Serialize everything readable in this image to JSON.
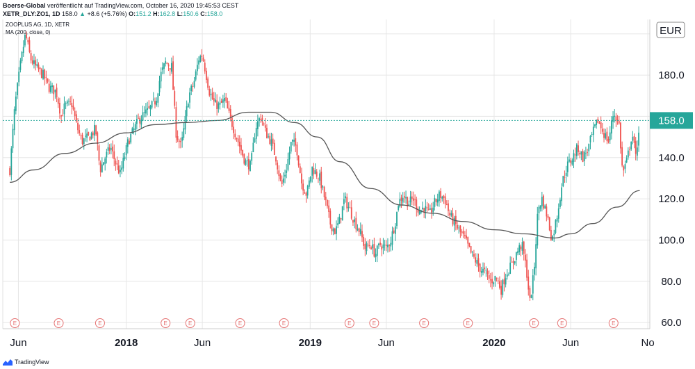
{
  "header": {
    "publisher": "Boerse-Global",
    "published_text": "veröffentlicht auf TradingView.com, October 16, 2020 19:45:53 CEST",
    "symbol": "XETR_DLY:ZO1, 1D",
    "last": "158.0",
    "change_icon": "up-arrow-icon",
    "change": "+8.6 (+5.76%)",
    "o_label": "O:",
    "o": "151.2",
    "h_label": "H:",
    "h": "162.8",
    "l_label": "L:",
    "l": "150.6",
    "c_label": "C:",
    "c": "158.0"
  },
  "legend": {
    "title": "ZOOPLUS AG, 1D, XETR",
    "indicator": "MA (200, close, 0)"
  },
  "footer": {
    "brand": "TradingView",
    "logo_icon": "tradingview-logo-icon"
  },
  "colors": {
    "up": "#26a69a",
    "down": "#ef5350",
    "ma": "#555555",
    "price_line": "#26a69a",
    "grid": "#e6e6e6",
    "earnings": "#e57373"
  },
  "chart_data": {
    "type": "candlestick",
    "title": "ZOOPLUS AG, 1D, XETR",
    "y_axis": {
      "currency": "EUR",
      "ticks": [
        "60.0",
        "80.0",
        "100.0",
        "120.0",
        "140.0",
        "160.0",
        "180.0"
      ],
      "ylim": [
        57,
        207
      ]
    },
    "x_axis": {
      "ticks": [
        "Jun",
        "2018",
        "Jun",
        "2019",
        "Jun",
        "2020",
        "Jun",
        "No"
      ],
      "bold_ticks": [
        "2018",
        "2019",
        "2020"
      ]
    },
    "current_price": "158.0",
    "grid": true,
    "price_close_path": [
      [
        "2017-05-15",
        134
      ],
      [
        "2017-05-25",
        165
      ],
      [
        "2017-06-05",
        185
      ],
      [
        "2017-06-15",
        200
      ],
      [
        "2017-06-25",
        188
      ],
      [
        "2017-07-05",
        184
      ],
      [
        "2017-07-20",
        180
      ],
      [
        "2017-08-01",
        174
      ],
      [
        "2017-08-15",
        172
      ],
      [
        "2017-08-25",
        160
      ],
      [
        "2017-09-01",
        165
      ],
      [
        "2017-09-15",
        166
      ],
      [
        "2017-09-25",
        155
      ],
      [
        "2017-10-05",
        148
      ],
      [
        "2017-10-20",
        150
      ],
      [
        "2017-11-01",
        154
      ],
      [
        "2017-11-10",
        134
      ],
      [
        "2017-11-20",
        140
      ],
      [
        "2017-12-01",
        145
      ],
      [
        "2017-12-10",
        138
      ],
      [
        "2017-12-20",
        132
      ],
      [
        "2018-01-05",
        148
      ],
      [
        "2018-01-15",
        153
      ],
      [
        "2018-01-25",
        158
      ],
      [
        "2018-02-05",
        161
      ],
      [
        "2018-02-15",
        163
      ],
      [
        "2018-03-01",
        168
      ],
      [
        "2018-03-10",
        180
      ],
      [
        "2018-03-20",
        186
      ],
      [
        "2018-04-01",
        184
      ],
      [
        "2018-04-10",
        152
      ],
      [
        "2018-04-20",
        145
      ],
      [
        "2018-05-05",
        170
      ],
      [
        "2018-05-15",
        176
      ],
      [
        "2018-05-25",
        188
      ],
      [
        "2018-06-01",
        190
      ],
      [
        "2018-06-15",
        172
      ],
      [
        "2018-06-25",
        166
      ],
      [
        "2018-07-05",
        165
      ],
      [
        "2018-07-15",
        168
      ],
      [
        "2018-07-25",
        160
      ],
      [
        "2018-08-05",
        152
      ],
      [
        "2018-08-15",
        145
      ],
      [
        "2018-08-25",
        138
      ],
      [
        "2018-09-05",
        136
      ],
      [
        "2018-09-15",
        155
      ],
      [
        "2018-09-25",
        160
      ],
      [
        "2018-10-05",
        152
      ],
      [
        "2018-10-15",
        148
      ],
      [
        "2018-10-25",
        140
      ],
      [
        "2018-11-05",
        126
      ],
      [
        "2018-11-15",
        135
      ],
      [
        "2018-11-25",
        148
      ],
      [
        "2018-12-05",
        145
      ],
      [
        "2018-12-15",
        128
      ],
      [
        "2018-12-25",
        122
      ],
      [
        "2019-01-05",
        135
      ],
      [
        "2019-01-20",
        130
      ],
      [
        "2019-02-01",
        118
      ],
      [
        "2019-02-10",
        108
      ],
      [
        "2019-02-20",
        104
      ],
      [
        "2019-03-01",
        110
      ],
      [
        "2019-03-10",
        120
      ],
      [
        "2019-03-20",
        115
      ],
      [
        "2019-04-01",
        108
      ],
      [
        "2019-04-10",
        104
      ],
      [
        "2019-04-20",
        96
      ],
      [
        "2019-05-01",
        98
      ],
      [
        "2019-05-10",
        93
      ],
      [
        "2019-05-20",
        98
      ],
      [
        "2019-06-01",
        96
      ],
      [
        "2019-06-10",
        100
      ],
      [
        "2019-06-20",
        110
      ],
      [
        "2019-06-25",
        118
      ],
      [
        "2019-07-05",
        122
      ],
      [
        "2019-07-15",
        118
      ],
      [
        "2019-07-25",
        120
      ],
      [
        "2019-08-05",
        114
      ],
      [
        "2019-08-15",
        116
      ],
      [
        "2019-08-25",
        112
      ],
      [
        "2019-09-05",
        118
      ],
      [
        "2019-09-15",
        122
      ],
      [
        "2019-09-25",
        120
      ],
      [
        "2019-10-05",
        112
      ],
      [
        "2019-10-15",
        108
      ],
      [
        "2019-10-25",
        104
      ],
      [
        "2019-11-05",
        100
      ],
      [
        "2019-11-15",
        94
      ],
      [
        "2019-11-25",
        90
      ],
      [
        "2019-12-05",
        86
      ],
      [
        "2019-12-15",
        84
      ],
      [
        "2019-12-25",
        80
      ],
      [
        "2020-01-05",
        82
      ],
      [
        "2020-01-15",
        76
      ],
      [
        "2020-01-25",
        84
      ],
      [
        "2020-02-05",
        88
      ],
      [
        "2020-02-15",
        94
      ],
      [
        "2020-02-25",
        98
      ],
      [
        "2020-03-05",
        86
      ],
      [
        "2020-03-12",
        70
      ],
      [
        "2020-03-20",
        84
      ],
      [
        "2020-03-28",
        115
      ],
      [
        "2020-04-05",
        120
      ],
      [
        "2020-04-15",
        112
      ],
      [
        "2020-04-25",
        100
      ],
      [
        "2020-05-05",
        112
      ],
      [
        "2020-05-15",
        128
      ],
      [
        "2020-05-25",
        136
      ],
      [
        "2020-06-05",
        140
      ],
      [
        "2020-06-15",
        145
      ],
      [
        "2020-06-25",
        140
      ],
      [
        "2020-07-05",
        144
      ],
      [
        "2020-07-15",
        152
      ],
      [
        "2020-07-25",
        158
      ],
      [
        "2020-08-05",
        152
      ],
      [
        "2020-08-15",
        148
      ],
      [
        "2020-08-25",
        162
      ],
      [
        "2020-09-05",
        156
      ],
      [
        "2020-09-12",
        132
      ],
      [
        "2020-09-20",
        138
      ],
      [
        "2020-10-01",
        152
      ],
      [
        "2020-10-08",
        140
      ],
      [
        "2020-10-16",
        158
      ]
    ],
    "ma200_path": [
      [
        "2017-05-15",
        128
      ],
      [
        "2017-07-01",
        134
      ],
      [
        "2017-09-01",
        142
      ],
      [
        "2017-11-01",
        147
      ],
      [
        "2018-01-01",
        152
      ],
      [
        "2018-03-01",
        156
      ],
      [
        "2018-05-01",
        157
      ],
      [
        "2018-07-01",
        158
      ],
      [
        "2018-09-01",
        162
      ],
      [
        "2018-10-15",
        162
      ],
      [
        "2018-12-01",
        157
      ],
      [
        "2019-01-15",
        150
      ],
      [
        "2019-03-01",
        138
      ],
      [
        "2019-05-01",
        125
      ],
      [
        "2019-07-01",
        117
      ],
      [
        "2019-09-01",
        113
      ],
      [
        "2019-11-01",
        109
      ],
      [
        "2020-01-01",
        105
      ],
      [
        "2020-03-01",
        103
      ],
      [
        "2020-05-01",
        101
      ],
      [
        "2020-06-01",
        103
      ],
      [
        "2020-07-15",
        108
      ],
      [
        "2020-09-01",
        116
      ],
      [
        "2020-10-16",
        124
      ]
    ],
    "earnings_dates": [
      "2017-05-25",
      "2017-08-20",
      "2017-11-10",
      "2018-03-20",
      "2018-05-08",
      "2018-08-15",
      "2018-11-10",
      "2019-03-20",
      "2019-05-08",
      "2019-08-15",
      "2019-11-10",
      "2020-03-20",
      "2020-05-15",
      "2020-08-25"
    ],
    "earnings_label": "E",
    "x_range": [
      "2017-05-01",
      "2020-11-05"
    ]
  }
}
